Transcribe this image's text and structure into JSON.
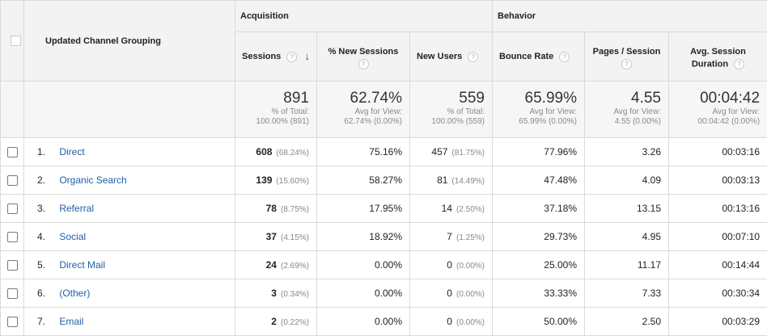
{
  "groups": {
    "acquisition": "Acquisition",
    "behavior": "Behavior"
  },
  "dimension_header": "Updated Channel Grouping",
  "columns": {
    "sessions": "Sessions",
    "pct_new_sessions": "% New Sessions",
    "new_users": "New Users",
    "bounce_rate": "Bounce Rate",
    "pages_session": "Pages / Session",
    "avg_session_duration_line1": "Avg. Session",
    "avg_session_duration_line2": "Duration"
  },
  "help_glyph": "?",
  "sort_glyph": "↓",
  "totals": {
    "sessions": {
      "value": "891",
      "line1": "% of Total:",
      "line2": "100.00% (891)"
    },
    "pct_new_sessions": {
      "value": "62.74%",
      "line1": "Avg for View:",
      "line2": "62.74% (0.00%)"
    },
    "new_users": {
      "value": "559",
      "line1": "% of Total:",
      "line2": "100.00% (559)"
    },
    "bounce_rate": {
      "value": "65.99%",
      "line1": "Avg for View:",
      "line2": "65.99% (0.00%)"
    },
    "pages_session": {
      "value": "4.55",
      "line1": "Avg for View:",
      "line2": "4.55 (0.00%)"
    },
    "avg_session_duration": {
      "value": "00:04:42",
      "line1": "Avg for View:",
      "line2": "00:04:42 (0.00%)"
    }
  },
  "rows": [
    {
      "index": "1.",
      "channel": "Direct",
      "sessions": "608",
      "sessions_pct": "(68.24%)",
      "pct_new_sessions": "75.16%",
      "new_users": "457",
      "new_users_pct": "(81.75%)",
      "bounce_rate": "77.96%",
      "pages_session": "3.26",
      "avg_duration": "00:03:16"
    },
    {
      "index": "2.",
      "channel": "Organic Search",
      "sessions": "139",
      "sessions_pct": "(15.60%)",
      "pct_new_sessions": "58.27%",
      "new_users": "81",
      "new_users_pct": "(14.49%)",
      "bounce_rate": "47.48%",
      "pages_session": "4.09",
      "avg_duration": "00:03:13"
    },
    {
      "index": "3.",
      "channel": "Referral",
      "sessions": "78",
      "sessions_pct": "(8.75%)",
      "pct_new_sessions": "17.95%",
      "new_users": "14",
      "new_users_pct": "(2.50%)",
      "bounce_rate": "37.18%",
      "pages_session": "13.15",
      "avg_duration": "00:13:16"
    },
    {
      "index": "4.",
      "channel": "Social",
      "sessions": "37",
      "sessions_pct": "(4.15%)",
      "pct_new_sessions": "18.92%",
      "new_users": "7",
      "new_users_pct": "(1.25%)",
      "bounce_rate": "29.73%",
      "pages_session": "4.95",
      "avg_duration": "00:07:10"
    },
    {
      "index": "5.",
      "channel": "Direct Mail",
      "sessions": "24",
      "sessions_pct": "(2.69%)",
      "pct_new_sessions": "0.00%",
      "new_users": "0",
      "new_users_pct": "(0.00%)",
      "bounce_rate": "25.00%",
      "pages_session": "11.17",
      "avg_duration": "00:14:44"
    },
    {
      "index": "6.",
      "channel": "(Other)",
      "sessions": "3",
      "sessions_pct": "(0.34%)",
      "pct_new_sessions": "0.00%",
      "new_users": "0",
      "new_users_pct": "(0.00%)",
      "bounce_rate": "33.33%",
      "pages_session": "7.33",
      "avg_duration": "00:30:34"
    },
    {
      "index": "7.",
      "channel": "Email",
      "sessions": "2",
      "sessions_pct": "(0.22%)",
      "pct_new_sessions": "0.00%",
      "new_users": "0",
      "new_users_pct": "(0.00%)",
      "bounce_rate": "50.00%",
      "pages_session": "2.50",
      "avg_duration": "00:03:29"
    }
  ],
  "colors": {
    "link": "#1e5fa8",
    "header_bg": "#f3f3f3",
    "totals_bg": "#f6f6f6",
    "border": "#dadada"
  }
}
